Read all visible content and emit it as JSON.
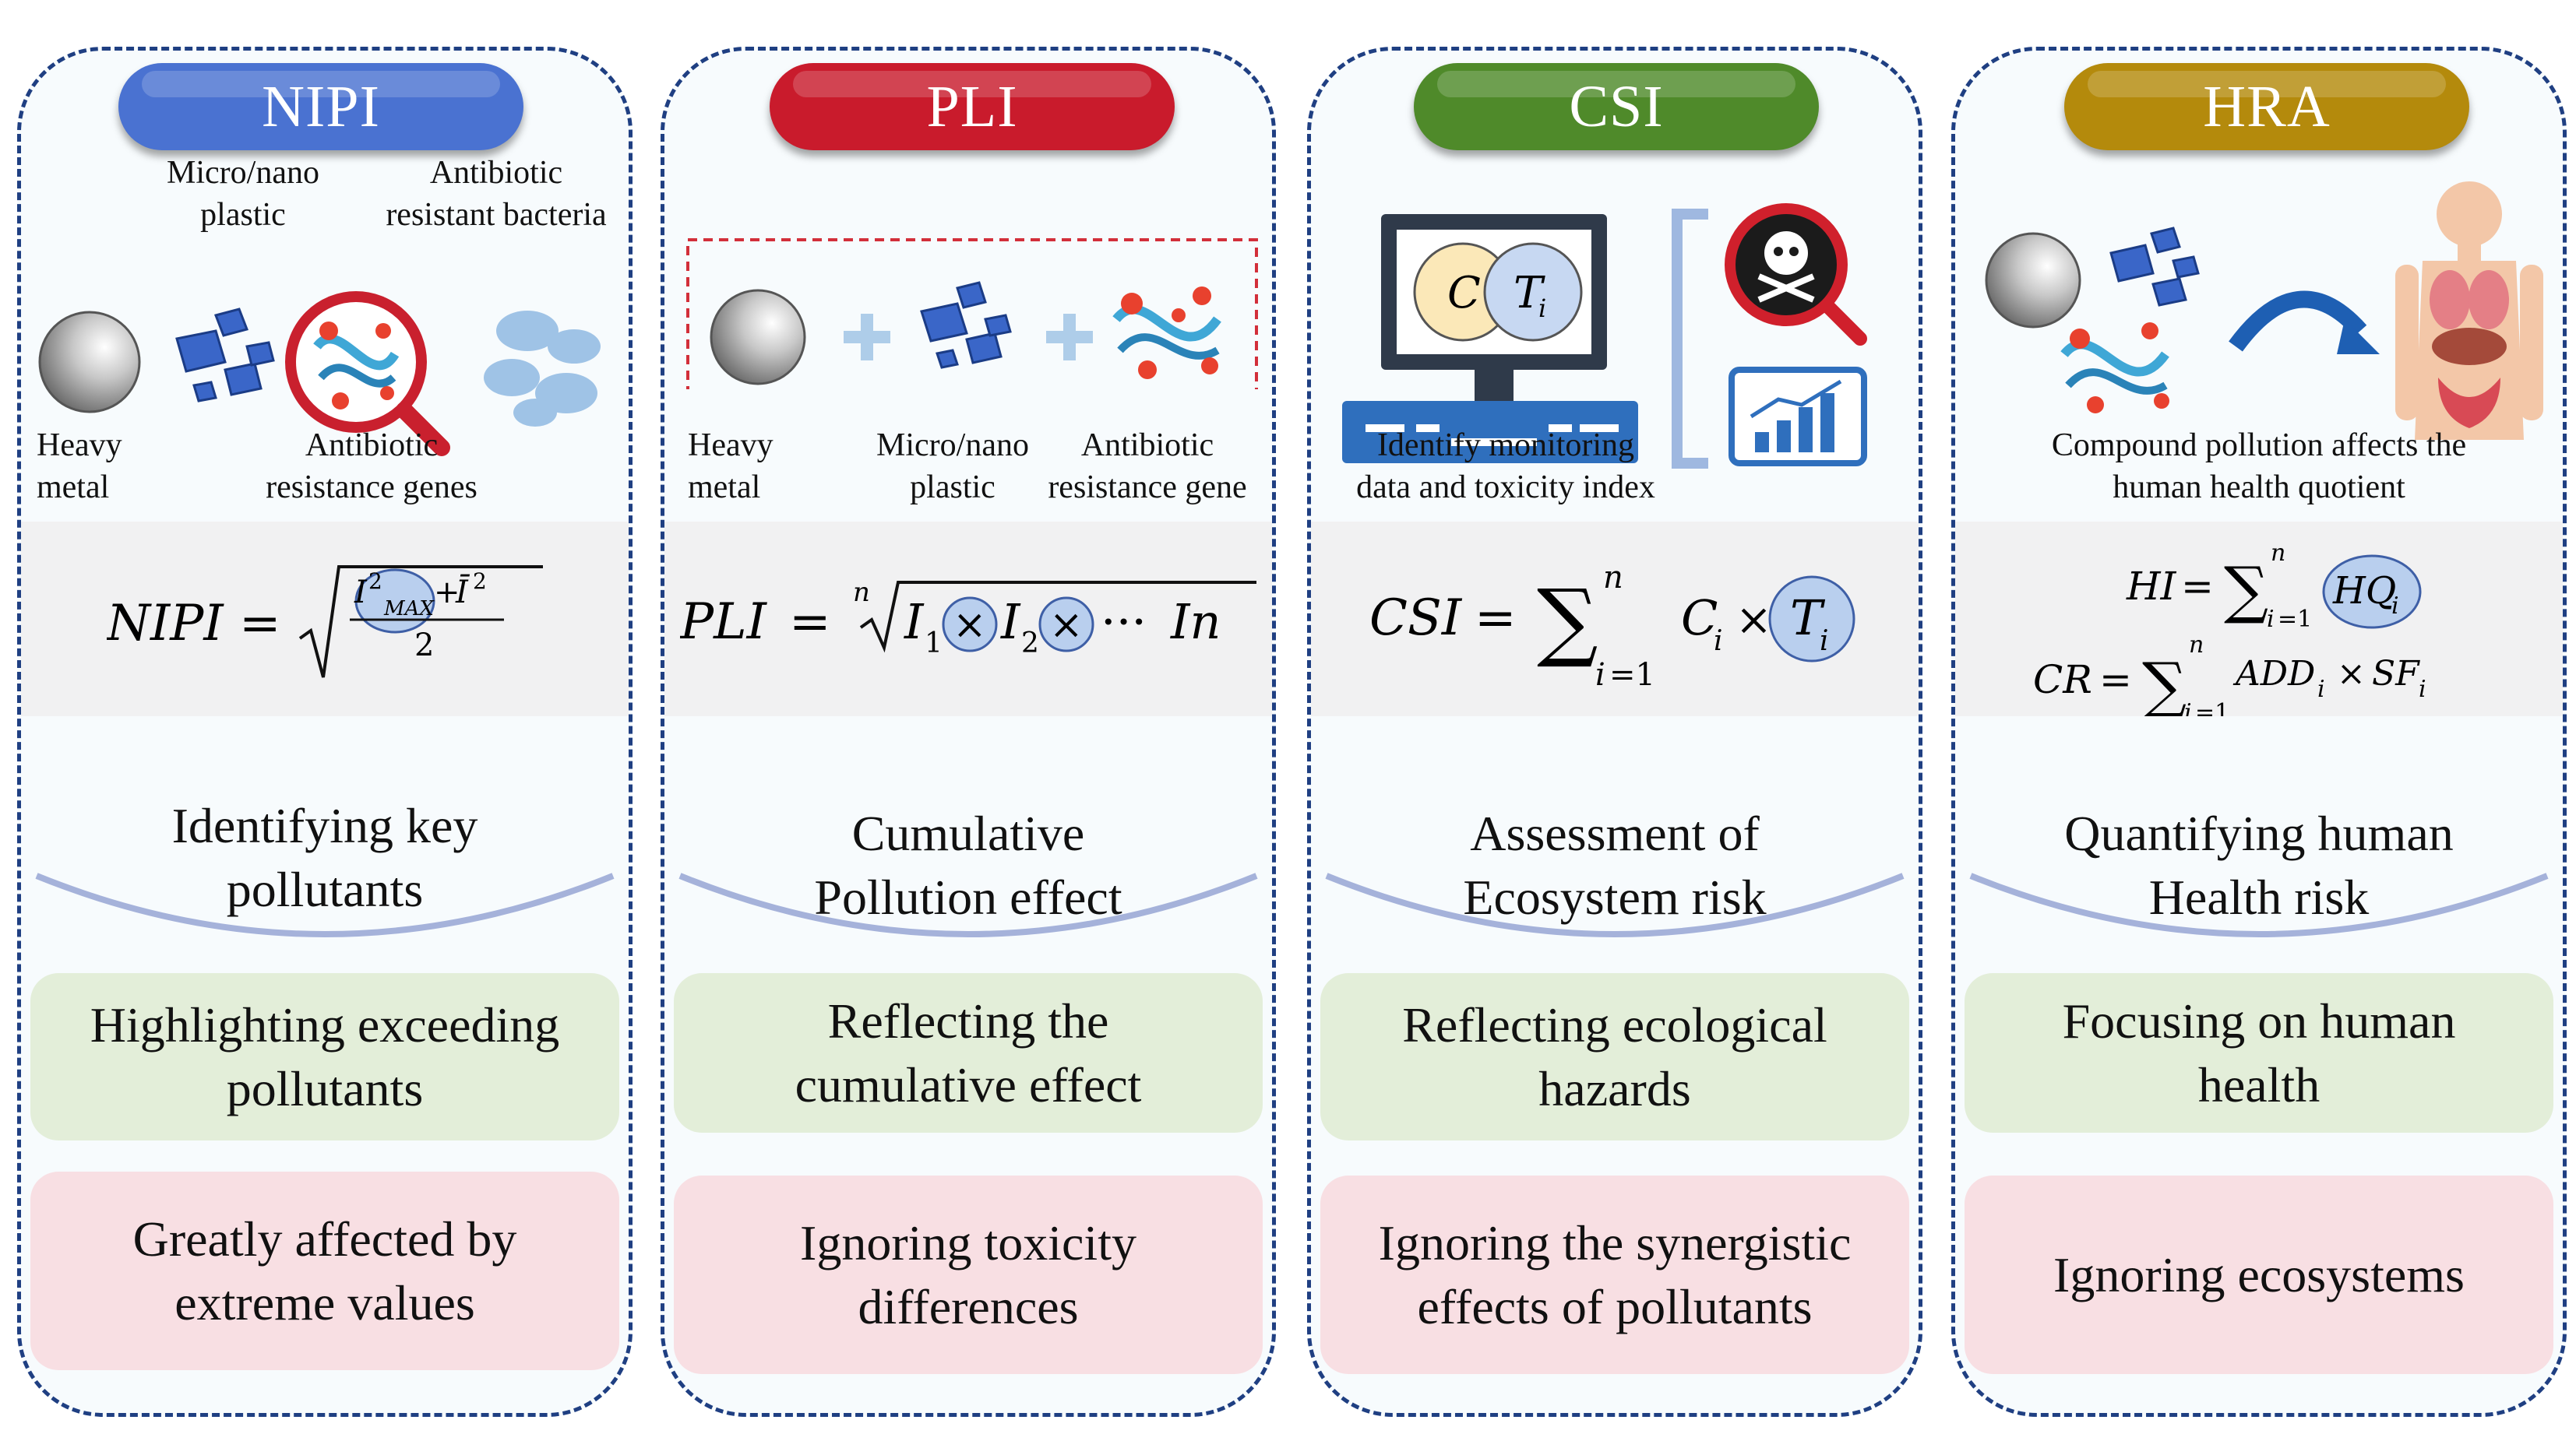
{
  "panels": [
    {
      "title": "NIPI",
      "color": "#4a72d1",
      "labels": {
        "micro": "Micro/nano\nplastic",
        "arb": "Antibiotic\nresistant bacteria",
        "heavy": "Heavy\nmetal",
        "arg": "Antibiotic\nresistance genes"
      },
      "heading": "Identifying key\npollutants",
      "advantage": "Highlighting exceeding\npollutants",
      "limitation": "Greatly affected by\nextreme values"
    },
    {
      "title": "PLI",
      "color": "#c91b2c",
      "labels": {
        "heavy": "Heavy\nmetal",
        "micro": "Micro/nano\nplastic",
        "arg": "Antibiotic\nresistance gene"
      },
      "heading": "Cumulative\nPollution effect",
      "advantage": "Reflecting the\ncumulative effect",
      "limitation": "Ignoring toxicity\ndifferences"
    },
    {
      "title": "CSI",
      "color": "#4f8a2a",
      "labels": {
        "identify": "Identify monitoring\ndata and toxicity index"
      },
      "heading": "Assessment of\nEcosystem risk",
      "advantage": "Reflecting ecological\nhazards",
      "limitation": "Ignoring the synergistic\neffects of pollutants"
    },
    {
      "title": "HRA",
      "color": "#b48a0c",
      "labels": {
        "compound": "Compound pollution affects the\nhuman health quotient"
      },
      "heading": "Quantifying human\nHealth risk",
      "advantage": "Focusing on human\nhealth",
      "limitation": "Ignoring ecosystems"
    }
  ]
}
